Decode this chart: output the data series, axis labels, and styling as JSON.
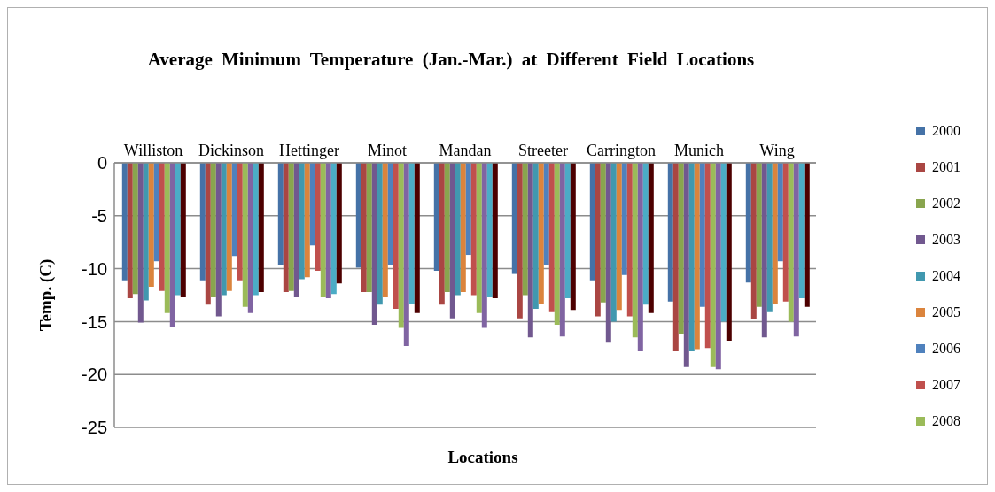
{
  "chart_data": {
    "type": "bar",
    "title": "Average Minimum Temperature (Jan.-Mar.) at Different Field Locations",
    "xlabel": "Locations",
    "ylabel": "Temp. (C)",
    "categories": [
      "Williston",
      "Dickinson",
      "Hettinger",
      "Minot",
      "Mandan",
      "Streeter",
      "Carrington",
      "Munich",
      "Wing"
    ],
    "series": [
      {
        "name": "2000",
        "color": "#4572a7",
        "values": [
          -11.1,
          -11.1,
          -9.7,
          -9.9,
          -10.2,
          -10.5,
          -11.1,
          -13.1,
          -11.3
        ]
      },
      {
        "name": "2001",
        "color": "#aa4643",
        "values": [
          -12.8,
          -13.4,
          -12.2,
          -12.2,
          -13.4,
          -14.7,
          -14.5,
          -17.8,
          -14.8
        ]
      },
      {
        "name": "2002",
        "color": "#89a54e",
        "values": [
          -12.4,
          -12.7,
          -12.1,
          -12.2,
          -12.2,
          -12.5,
          -13.2,
          -16.2,
          -13.6
        ]
      },
      {
        "name": "2003",
        "color": "#71588f",
        "values": [
          -15.1,
          -14.5,
          -12.7,
          -15.3,
          -14.7,
          -16.5,
          -17.0,
          -19.3,
          -16.5
        ]
      },
      {
        "name": "2004",
        "color": "#4198af",
        "values": [
          -13.0,
          -12.5,
          -11.0,
          -13.4,
          -12.5,
          -13.8,
          -15.0,
          -17.8,
          -14.1
        ]
      },
      {
        "name": "2005",
        "color": "#db843d",
        "values": [
          -11.7,
          -12.1,
          -10.8,
          -12.7,
          -12.2,
          -13.3,
          -13.9,
          -17.6,
          -13.3
        ]
      },
      {
        "name": "2006",
        "color": "#4f81bd",
        "values": [
          -9.3,
          -8.8,
          -7.8,
          -9.7,
          -8.7,
          -9.7,
          -10.6,
          -13.6,
          -9.3
        ]
      },
      {
        "name": "2007",
        "color": "#c0504d",
        "values": [
          -12.1,
          -11.1,
          -10.2,
          -13.8,
          -12.5,
          -14.1,
          -14.5,
          -17.5,
          -13.1
        ]
      },
      {
        "name": "2008",
        "color": "#9bbb59",
        "values": [
          -14.2,
          -13.6,
          -12.7,
          -15.6,
          -14.2,
          -15.3,
          -16.5,
          -19.3,
          -15.0
        ]
      },
      {
        "color": "#8064a2",
        "values": [
          -15.5,
          -14.2,
          -12.8,
          -17.3,
          -15.6,
          -16.4,
          -17.8,
          -19.5,
          -16.4
        ]
      },
      {
        "color": "#4bacc6",
        "values": [
          -12.5,
          -12.5,
          -12.4,
          -13.3,
          -12.7,
          -12.8,
          -13.4,
          -15.0,
          -12.8
        ]
      },
      {
        "color": "#4d0000",
        "values": [
          -12.7,
          -12.2,
          -11.4,
          -14.2,
          -12.8,
          -13.9,
          -14.2,
          -16.8,
          -13.6
        ]
      }
    ],
    "ylim": [
      -25,
      0
    ],
    "yticks": [
      -25,
      -20,
      -15,
      -10,
      -5,
      0
    ],
    "grid": "y",
    "legend": "right"
  }
}
